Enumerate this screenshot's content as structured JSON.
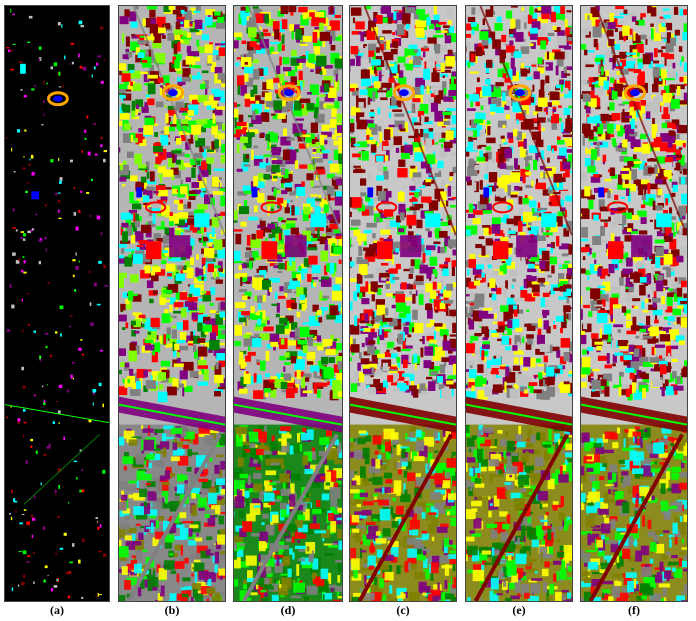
{
  "figure": {
    "panels": [
      {
        "id": "a",
        "label": "(a)",
        "kind": "ground-truth-sparse",
        "background": "#000000"
      },
      {
        "id": "b",
        "label": "(b)",
        "kind": "classification-map",
        "background": "#b5b5b5"
      },
      {
        "id": "d",
        "label": "(d)",
        "kind": "classification-map",
        "background": "#b5b5b5"
      },
      {
        "id": "c",
        "label": "(c)",
        "kind": "classification-map",
        "background": "#c8c8c8"
      },
      {
        "id": "e",
        "label": "(e)",
        "kind": "classification-map",
        "background": "#c8c8c8"
      },
      {
        "id": "f",
        "label": "(f)",
        "kind": "classification-map",
        "background": "#c8c8c8"
      }
    ],
    "class_colors": {
      "healthy_grass": "#00ff00",
      "stressed_grass": "#7fff00",
      "trees": "#008000",
      "soil": "#808000",
      "water": "#0000ff",
      "residential": "#808080",
      "commercial": "#800080",
      "road": "#ffff00",
      "highway": "#800000",
      "railway": "#00ffff",
      "parking_lot": "#ff0000",
      "tennis_court": "#ff00ff",
      "running_track": "#ffa500",
      "building_light": "#c0c0c0"
    }
  }
}
